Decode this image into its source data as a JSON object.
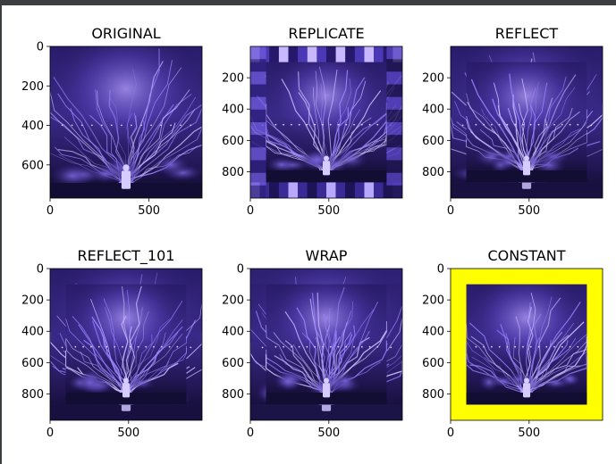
{
  "chart_data": [
    {
      "type": "image",
      "title": "ORIGINAL",
      "xlim": [
        0,
        768
      ],
      "ylim": [
        0,
        768
      ],
      "xticks": [
        0,
        500
      ],
      "yticks": [
        0,
        200,
        400,
        600
      ],
      "border": "none"
    },
    {
      "type": "image",
      "title": "REPLICATE",
      "xlim": [
        0,
        968
      ],
      "ylim": [
        0,
        968
      ],
      "xticks": [
        0,
        500
      ],
      "yticks": [
        200,
        400,
        600,
        800
      ],
      "border": "replicate"
    },
    {
      "type": "image",
      "title": "REFLECT",
      "xlim": [
        0,
        968
      ],
      "ylim": [
        0,
        968
      ],
      "xticks": [
        0,
        500
      ],
      "yticks": [
        200,
        400,
        600,
        800
      ],
      "border": "reflect"
    },
    {
      "type": "image",
      "title": "REFLECT_101",
      "xlim": [
        0,
        968
      ],
      "ylim": [
        0,
        968
      ],
      "xticks": [
        0,
        500
      ],
      "yticks": [
        0,
        200,
        400,
        600,
        800
      ],
      "border": "reflect101"
    },
    {
      "type": "image",
      "title": "WRAP",
      "xlim": [
        0,
        968
      ],
      "ylim": [
        0,
        968
      ],
      "xticks": [
        0,
        500
      ],
      "yticks": [
        0,
        200,
        400,
        600,
        800
      ],
      "border": "wrap"
    },
    {
      "type": "image",
      "title": "CONSTANT",
      "xlim": [
        0,
        968
      ],
      "ylim": [
        0,
        968
      ],
      "xticks": [
        0,
        500
      ],
      "yticks": [
        0,
        200,
        400,
        600,
        800
      ],
      "border": "constant",
      "border_color": "#ffff00"
    }
  ],
  "colors": {
    "background": "#ffffff",
    "image_dark": "#0f0a2e",
    "image_mid": "#3f2e91",
    "image_light": "#c8b8ff",
    "constant_border": "#ffff00"
  }
}
